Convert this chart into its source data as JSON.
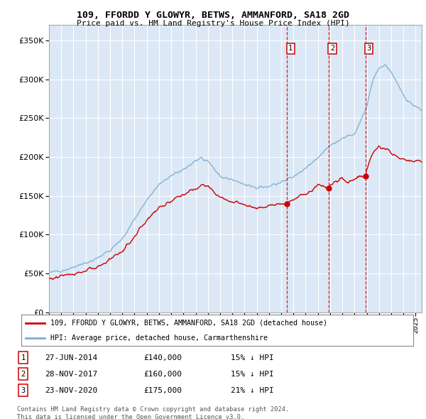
{
  "title": "109, FFORDD Y GLOWYR, BETWS, AMMANFORD, SA18 2GD",
  "subtitle": "Price paid vs. HM Land Registry's House Price Index (HPI)",
  "ylim": [
    0,
    370000
  ],
  "xlim_start": 1995.0,
  "xlim_end": 2025.5,
  "sales": [
    {
      "date": 2014.49,
      "price": 140000,
      "label": "1"
    },
    {
      "date": 2017.91,
      "price": 160000,
      "label": "2"
    },
    {
      "date": 2020.9,
      "price": 175000,
      "label": "3"
    }
  ],
  "sale_annotations": [
    {
      "label": "1",
      "date": "27-JUN-2014",
      "price": "£140,000",
      "pct": "15% ↓ HPI"
    },
    {
      "label": "2",
      "date": "28-NOV-2017",
      "price": "£160,000",
      "pct": "15% ↓ HPI"
    },
    {
      "label": "3",
      "date": "23-NOV-2020",
      "price": "£175,000",
      "pct": "21% ↓ HPI"
    }
  ],
  "hpi_color": "#7aadd4",
  "price_color": "#cc0000",
  "grid_color": "#cccccc",
  "plot_bg_color": "#dce8f5",
  "fig_bg_color": "#ffffff",
  "legend_label_price": "109, FFORDD Y GLOWYR, BETWS, AMMANFORD, SA18 2GD (detached house)",
  "legend_label_hpi": "HPI: Average price, detached house, Carmarthenshire",
  "footer": "Contains HM Land Registry data © Crown copyright and database right 2024.\nThis data is licensed under the Open Government Licence v3.0."
}
